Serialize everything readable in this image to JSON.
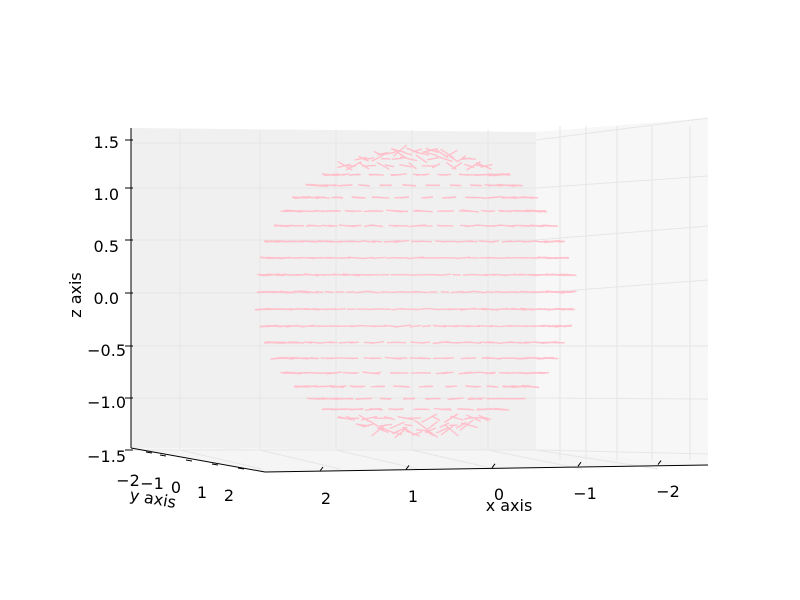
{
  "chart_data": {
    "type": "3d-quiver",
    "title": "",
    "xlabel": "x axis",
    "ylabel": "y axis",
    "zlabel": "z axis",
    "x_ticks": [
      "−2",
      "−1",
      "0",
      "1",
      "2"
    ],
    "y_ticks": [
      "−2",
      "−1",
      "0",
      "1",
      "2"
    ],
    "z_ticks": [
      "−1.5",
      "−1.0",
      "−0.5",
      "0.0",
      "0.5",
      "1.0",
      "1.5"
    ],
    "xlim": [
      -2.5,
      2.5
    ],
    "ylim": [
      -2.5,
      2.5
    ],
    "zlim": [
      -1.5,
      1.5
    ],
    "grid": true,
    "surface": {
      "shape": "sphere",
      "radius": 1.5,
      "center": [
        0,
        0,
        0
      ]
    },
    "arrow_color": "#ffc0cb",
    "pane_color": "#f0f0f0",
    "grid_color": "#e6e6e6"
  }
}
